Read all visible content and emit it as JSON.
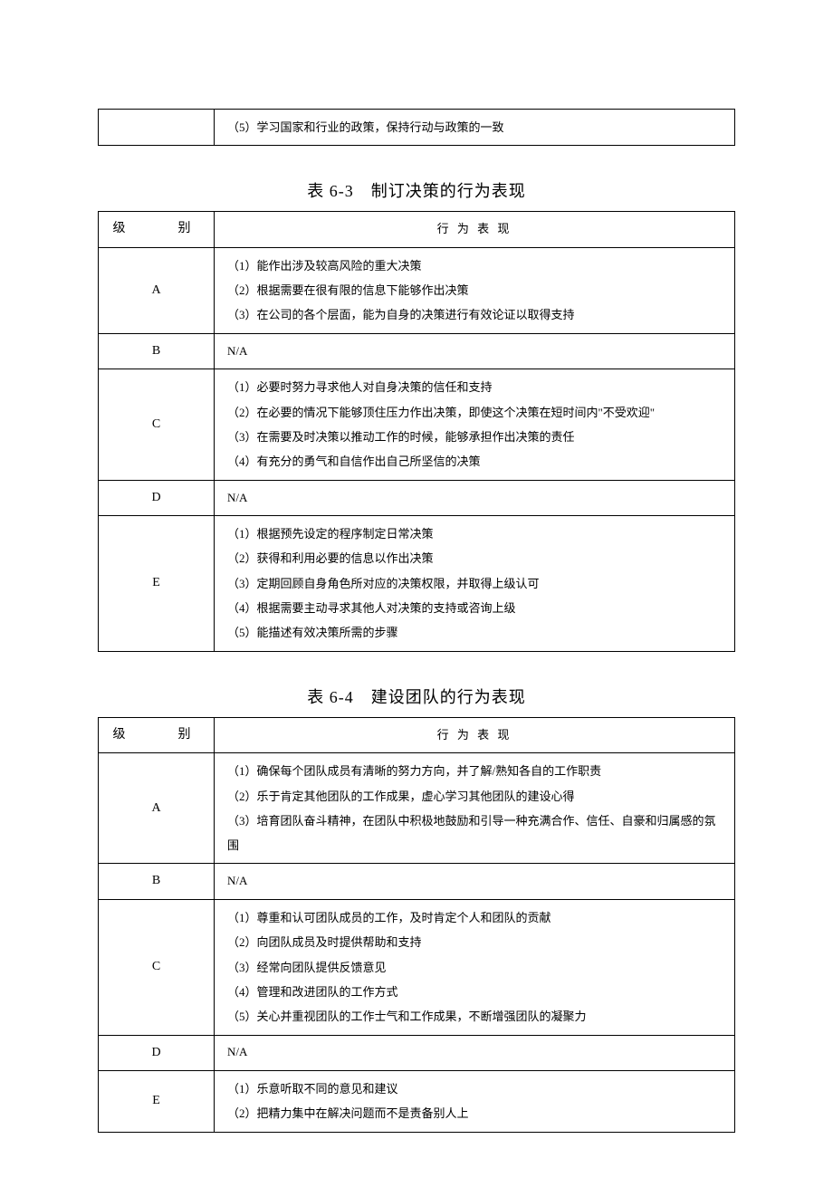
{
  "top_fragment": {
    "items": [
      "（5）学习国家和行业的政策，保持行动与政策的一致"
    ]
  },
  "table63": {
    "title": "表 6-3　制订决策的行为表现",
    "header_level": "级　　别",
    "header_behavior": "行 为 表 现",
    "rows": [
      {
        "level": "A",
        "items": [
          "（1）能作出涉及较高风险的重大决策",
          "（2）根据需要在很有限的信息下能够作出决策",
          "（3）在公司的各个层面，能为自身的决策进行有效论证以取得支持"
        ]
      },
      {
        "level": "B",
        "na": "N/A"
      },
      {
        "level": "C",
        "items": [
          "（1）必要时努力寻求他人对自身决策的信任和支持",
          "（2）在必要的情况下能够顶住压力作出决策，即使这个决策在短时间内\"不受欢迎\"",
          "（3）在需要及时决策以推动工作的时候，能够承担作出决策的责任",
          "（4）有充分的勇气和自信作出自己所坚信的决策"
        ]
      },
      {
        "level": "D",
        "na": "N/A"
      },
      {
        "level": "E",
        "items": [
          "（1）根据预先设定的程序制定日常决策",
          "（2）获得和利用必要的信息以作出决策",
          "（3）定期回顾自身角色所对应的决策权限，并取得上级认可",
          "（4）根据需要主动寻求其他人对决策的支持或咨询上级",
          "（5）能描述有效决策所需的步骤"
        ]
      }
    ]
  },
  "table64": {
    "title": "表 6-4　建设团队的行为表现",
    "header_level": "级　　别",
    "header_behavior": "行 为 表 现",
    "rows": [
      {
        "level": "A",
        "items": [
          "（1）确保每个团队成员有清晰的努力方向，并了解/熟知各自的工作职责",
          "（2）乐于肯定其他团队的工作成果，虚心学习其他团队的建设心得",
          "（3）培育团队奋斗精神，在团队中积极地鼓励和引导一种充满合作、信任、自豪和归属感的氛围"
        ]
      },
      {
        "level": "B",
        "na": "N/A"
      },
      {
        "level": "C",
        "items": [
          "（1）尊重和认可团队成员的工作，及时肯定个人和团队的贡献",
          "（2）向团队成员及时提供帮助和支持",
          "（3）经常向团队提供反馈意见",
          "（4）管理和改进团队的工作方式",
          "（5）关心并重视团队的工作士气和工作成果，不断增强团队的凝聚力"
        ]
      },
      {
        "level": "D",
        "na": "N/A"
      },
      {
        "level": "E",
        "items": [
          "（1）乐意听取不同的意见和建议",
          "（2）把精力集中在解决问题而不是责备别人上"
        ]
      }
    ]
  }
}
